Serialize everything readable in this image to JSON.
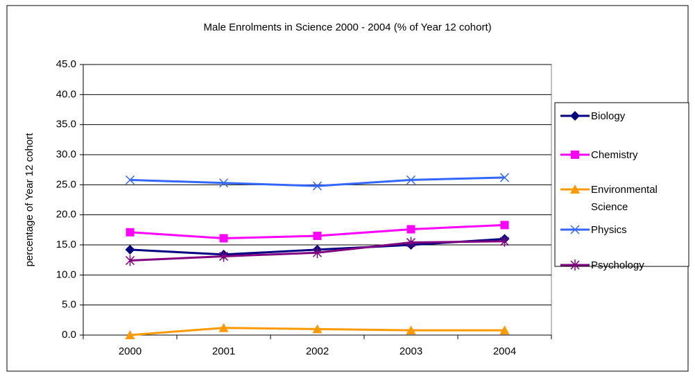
{
  "chart_data": {
    "type": "line",
    "title": "Male Enrolments in Science 2000 - 2004 (% of Year 12 cohort)",
    "y_label": "percentage of Year 12 cohort",
    "categories": [
      "2000",
      "2001",
      "2002",
      "2003",
      "2004"
    ],
    "series": [
      {
        "name": "Biology",
        "color": "#000080",
        "marker": "diamond",
        "values": [
          14.2,
          13.4,
          14.2,
          15.0,
          16.0
        ]
      },
      {
        "name": "Chemistry",
        "color": "#ff00ff",
        "marker": "square",
        "values": [
          17.1,
          16.1,
          16.5,
          17.6,
          18.3
        ]
      },
      {
        "name": "Environmental Science",
        "color": "#ff9900",
        "marker": "triangle",
        "values": [
          0.0,
          1.2,
          1.0,
          0.8,
          0.8
        ]
      },
      {
        "name": "Physics",
        "color": "#3366ff",
        "marker": "x",
        "values": [
          25.8,
          25.3,
          24.8,
          25.8,
          26.2
        ]
      },
      {
        "name": "Psychology",
        "color": "#800080",
        "marker": "star",
        "values": [
          12.4,
          13.1,
          13.7,
          15.4,
          15.6
        ]
      }
    ],
    "ylim": [
      0,
      45
    ],
    "yticks": [
      {
        "value": 0,
        "label": "0.0"
      },
      {
        "value": 5,
        "label": "5.0"
      },
      {
        "value": 10,
        "label": "10.0"
      },
      {
        "value": 15,
        "label": "15.0"
      },
      {
        "value": 20,
        "label": "20.0"
      },
      {
        "value": 25,
        "label": "25.0"
      },
      {
        "value": 30,
        "label": "30.0"
      },
      {
        "value": 35,
        "label": "35.0"
      },
      {
        "value": 40,
        "label": "40.0"
      },
      {
        "value": 45,
        "label": "45.0"
      }
    ],
    "grid": true,
    "legend": "right"
  }
}
